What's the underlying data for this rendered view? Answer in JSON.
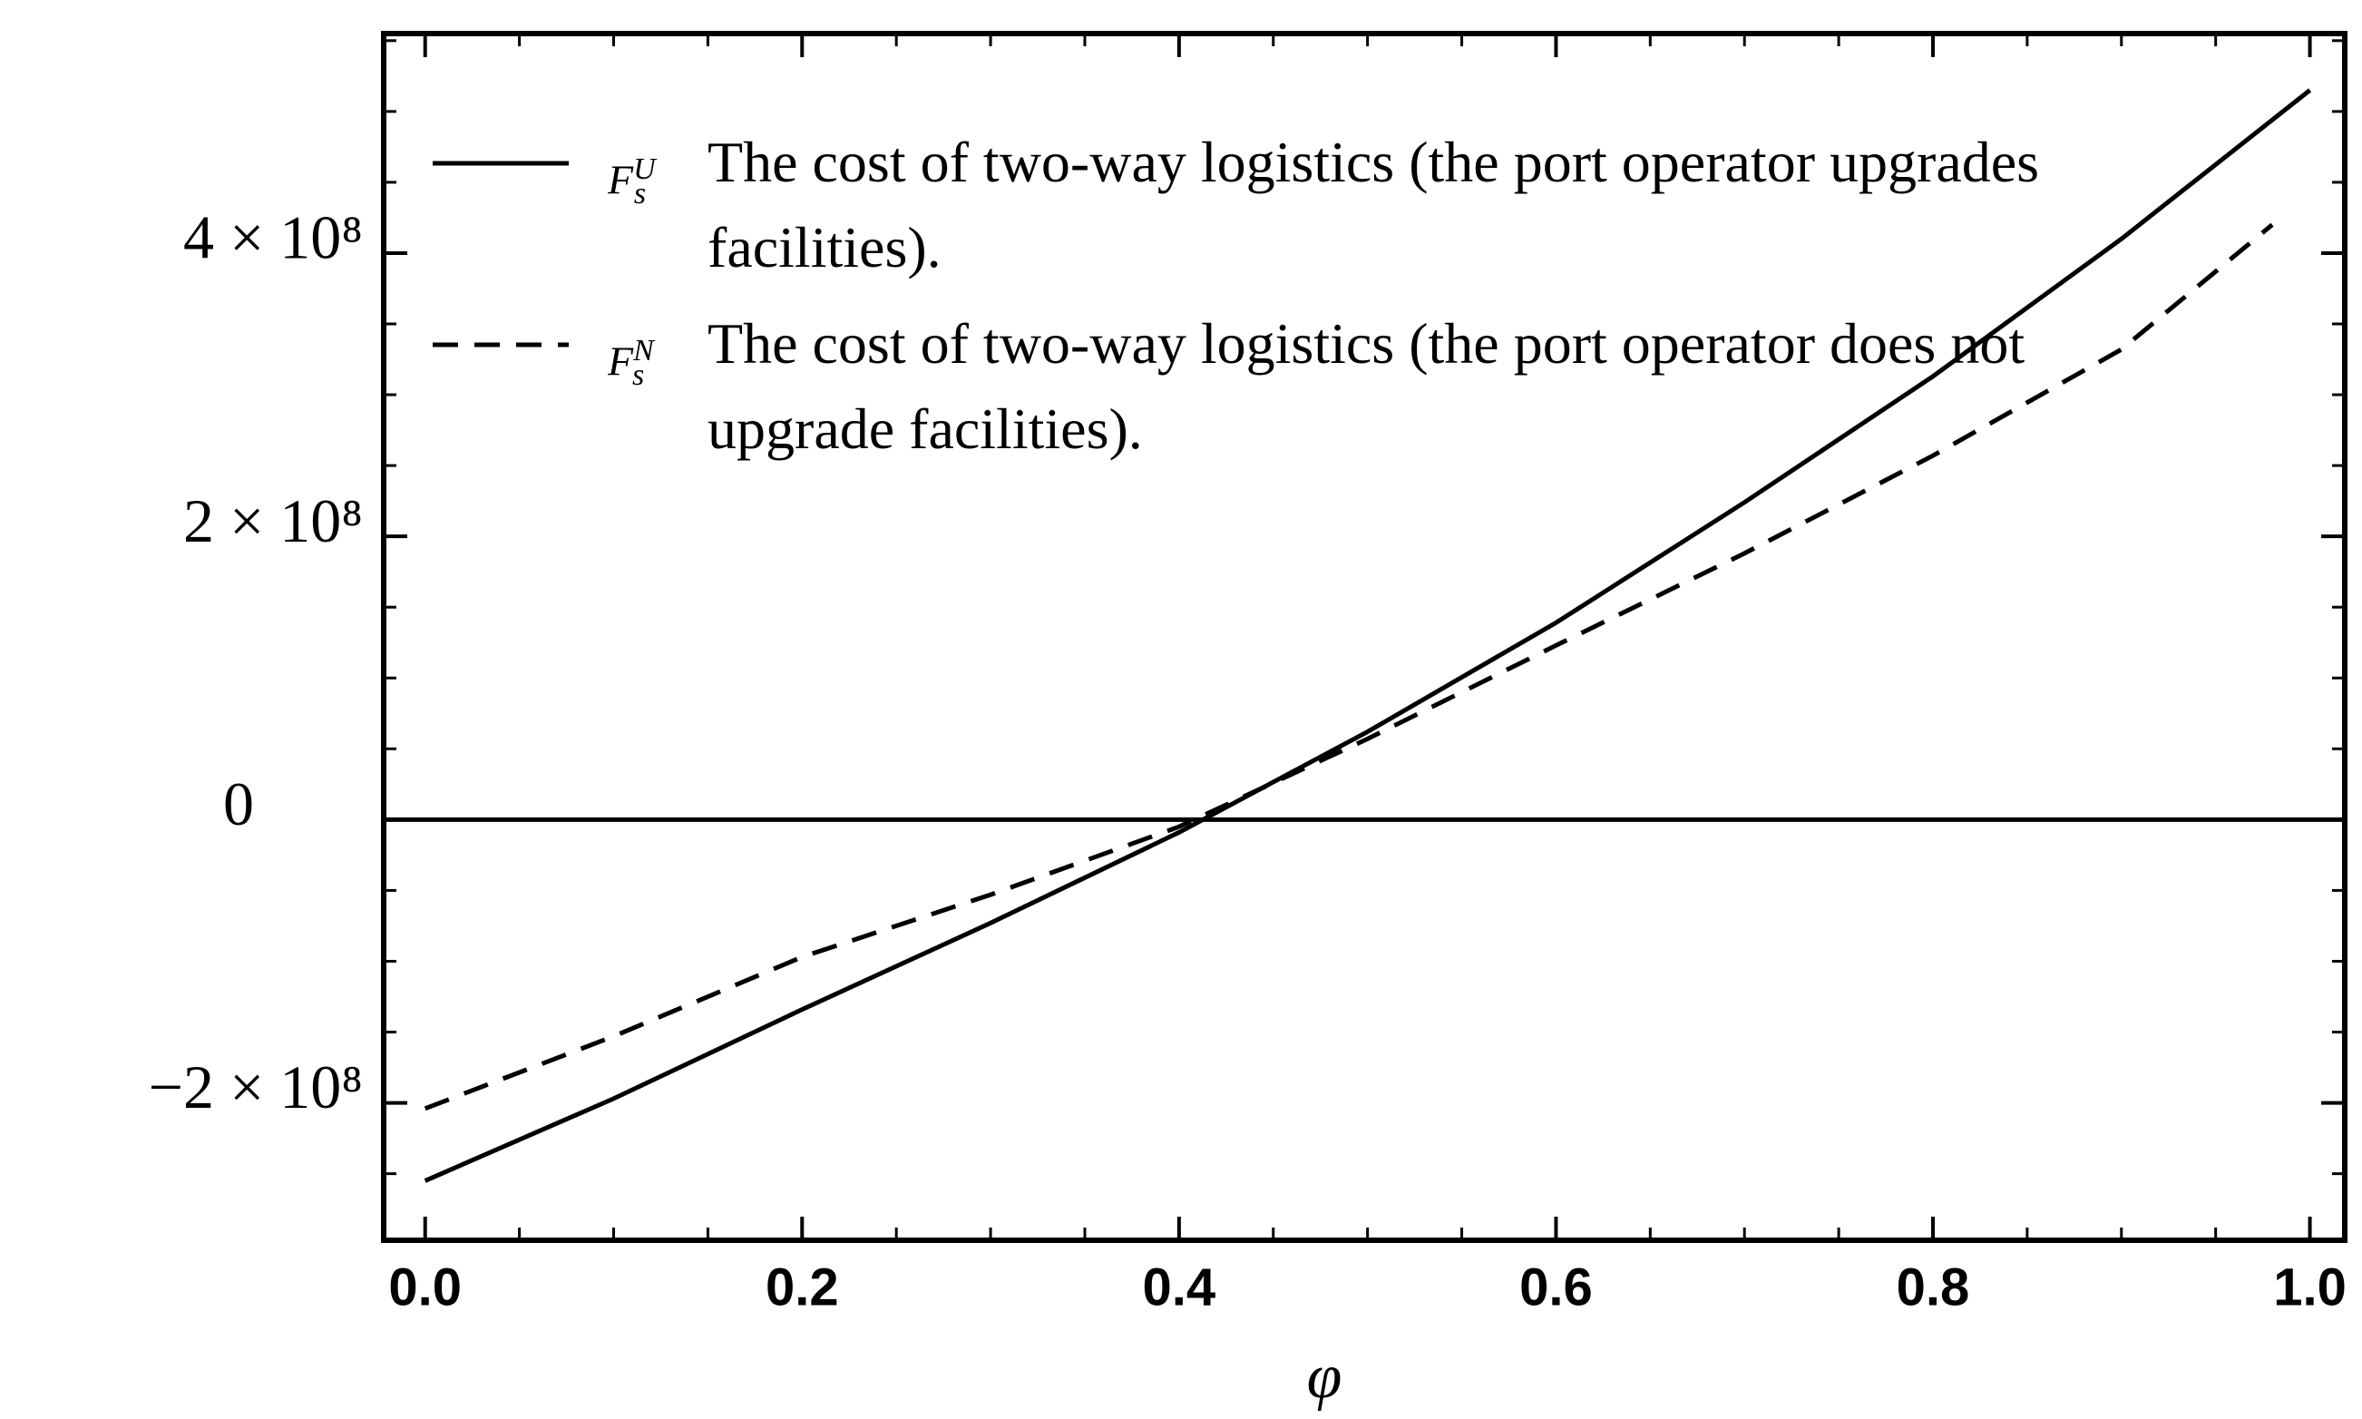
{
  "chart_data": {
    "type": "line",
    "x_label": "φ",
    "xlim": [
      -0.022,
      1.0185
    ],
    "ylim": [
      -297000000,
      555000000
    ],
    "xticks": [
      {
        "value": 0,
        "label": "0.0"
      },
      0.2,
      0.4,
      0.6,
      0.8,
      {
        "value": 1,
        "label": "1.0"
      }
    ],
    "yticks": [
      {
        "value": -200000000,
        "label": "−2 × 10⁸"
      },
      {
        "value": 0,
        "label": "0"
      },
      {
        "value": 200000000,
        "label": "2 × 10⁸"
      },
      {
        "value": 400000000,
        "label": "4 × 10⁸"
      }
    ],
    "xminor": 4,
    "yminor": 4,
    "zero_line": true,
    "legend": "upper left",
    "series": [
      {
        "name": "The cost of two-way logistics (the port operator upgrades facilities).",
        "symbol": "F",
        "symbol_sub": "s",
        "symbol_sup": "U",
        "color": "#000000",
        "dash": "solid",
        "x": [
          0,
          0.1,
          0.2,
          0.3,
          0.4,
          0.5,
          0.6,
          0.7,
          0.8,
          0.9,
          1.0
        ],
        "values": [
          -255000000,
          -197000000,
          -134000000,
          -73000000,
          -9000000,
          62000000,
          139000000,
          224000000,
          313000000,
          410000000,
          515000000
        ]
      },
      {
        "name": "The cost of two-way logistics (the port operator does not upgrade facilities).",
        "symbol": "F",
        "symbol_sub": "s",
        "symbol_sup": "N",
        "color": "#000000",
        "dash": "dashed",
        "x": [
          0,
          0.1,
          0.2,
          0.3,
          0.4,
          0.5,
          0.6,
          0.7,
          0.8,
          0.9,
          0.98
        ],
        "values": [
          -204000000,
          -153000000,
          -97000000,
          -53000000,
          -5000000,
          57000000,
          123000000,
          188000000,
          257000000,
          332000000,
          420000000
        ]
      }
    ]
  }
}
